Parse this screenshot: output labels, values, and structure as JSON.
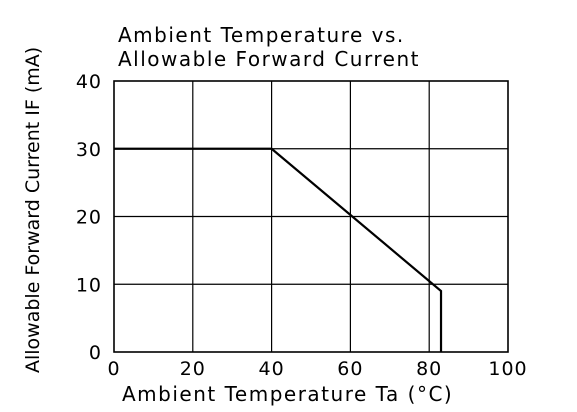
{
  "chart_data": {
    "type": "line",
    "title_line1": "Ambient Temperature vs.",
    "title_line2": "Allowable Forward Current",
    "xlabel": "Ambient Temperature Ta (°C)",
    "ylabel": "Allowable Forward Current IF (mA)",
    "xlim": [
      0,
      100
    ],
    "ylim": [
      0,
      40
    ],
    "x_ticks": [
      "0",
      "20",
      "40",
      "60",
      "80",
      "100"
    ],
    "x_tick_values": [
      0,
      20,
      40,
      60,
      80,
      100
    ],
    "y_ticks": [
      "0",
      "10",
      "20",
      "30",
      "40"
    ],
    "y_tick_values": [
      0,
      10,
      20,
      30,
      40
    ],
    "grid": true,
    "series": [
      {
        "x": [
          0,
          40,
          83,
          83
        ],
        "y": [
          30,
          30,
          9,
          0
        ]
      }
    ]
  }
}
